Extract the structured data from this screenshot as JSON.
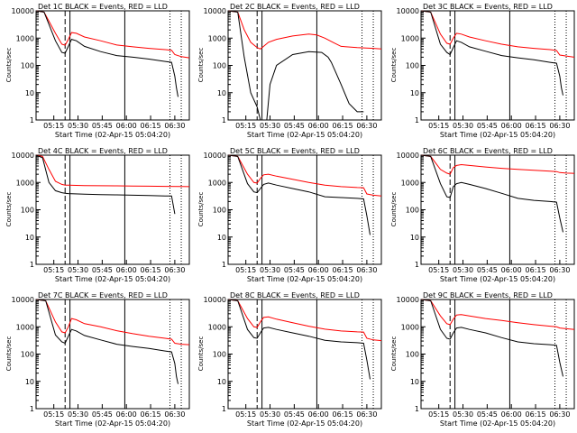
{
  "figure": {
    "panels": [
      {
        "title": "Det 1C BLACK = Events, RED = LLD"
      },
      {
        "title": "Det 2C BLACK = Events, RED = LLD"
      },
      {
        "title": "Det 3C BLACK = Events, RED = LLD"
      },
      {
        "title": "Det 4C BLACK = Events, RED = LLD"
      },
      {
        "title": "Det 5C BLACK = Events, RED = LLD"
      },
      {
        "title": "Det 6C BLACK = Events, RED = LLD"
      },
      {
        "title": "Det 7C BLACK = Events, RED = LLD"
      },
      {
        "title": "Det 8C BLACK = Events, RED = LLD"
      },
      {
        "title": "Det 9C BLACK = Events, RED = LLD"
      }
    ]
  },
  "chart_data": {
    "type": "line",
    "xlabel": "Start Time (02-Apr-15 05:04:20)",
    "ylabel": "Counts/sec",
    "x_ticks": [
      "05:15",
      "05:30",
      "05:45",
      "06:00",
      "06:15",
      "06:30"
    ],
    "y_ticks": [
      "1",
      "10",
      "100",
      "1000",
      "10000"
    ],
    "y_scale": "log",
    "ylim": [
      1,
      10000
    ],
    "x_minutes_range": [
      0,
      95
    ],
    "colors": {
      "events": "#000000",
      "lld": "#ff0000"
    },
    "panels": [
      {
        "name": "Det 1C",
        "markers": {
          "dashed": 18,
          "solid": [
            21,
            55
          ],
          "dotted": [
            83,
            90
          ]
        },
        "series": [
          {
            "name": "BLACK = Events",
            "color": "#000000",
            "x": [
              0,
              5,
              12,
              16,
              18,
              20,
              22,
              25,
              30,
              40,
              50,
              60,
              70,
              80,
              84,
              86,
              87,
              88
            ],
            "y": [
              10000,
              9000,
              800,
              300,
              280,
              500,
              900,
              800,
              500,
              320,
              230,
              200,
              170,
              140,
              130,
              40,
              15,
              7
            ]
          },
          {
            "name": "RED = LLD",
            "color": "#ff0000",
            "x": [
              0,
              5,
              12,
              16,
              18,
              20,
              22,
              25,
              30,
              40,
              50,
              60,
              70,
              80,
              84,
              86,
              90,
              95
            ],
            "y": [
              10000,
              9000,
              1500,
              600,
              550,
              900,
              1600,
              1500,
              1100,
              800,
              560,
              480,
              420,
              380,
              360,
              250,
              210,
              190
            ]
          }
        ]
      },
      {
        "name": "Det 2C",
        "markers": {
          "dashed": 18,
          "solid": [
            21,
            55
          ],
          "dotted": [
            83,
            90
          ]
        },
        "series": [
          {
            "name": "BLACK = Events",
            "color": "#000000",
            "x": [
              0,
              6,
              10,
              14,
              18,
              20,
              22,
              24,
              26,
              30,
              40,
              50,
              58,
              62,
              64,
              66,
              70,
              75,
              80,
              84
            ],
            "y": [
              10000,
              9000,
              200,
              10,
              3,
              1,
              1,
              1,
              20,
              100,
              250,
              320,
              300,
              200,
              130,
              70,
              20,
              4,
              2,
              2
            ]
          },
          {
            "name": "RED = LLD",
            "color": "#ff0000",
            "x": [
              0,
              6,
              10,
              14,
              18,
              20,
              22,
              25,
              30,
              40,
              50,
              55,
              60,
              65,
              70,
              80,
              90,
              95
            ],
            "y": [
              10000,
              9000,
              2000,
              700,
              450,
              400,
              500,
              700,
              900,
              1200,
              1400,
              1300,
              1000,
              700,
              500,
              450,
              420,
              400
            ]
          }
        ]
      },
      {
        "name": "Det 3C",
        "markers": {
          "dashed": 18,
          "solid": [
            21,
            55
          ],
          "dotted": [
            83,
            90
          ]
        },
        "series": [
          {
            "name": "BLACK = Events",
            "color": "#000000",
            "x": [
              0,
              6,
              12,
              16,
              18,
              20,
              22,
              25,
              30,
              40,
              50,
              60,
              70,
              80,
              84,
              86,
              87,
              88
            ],
            "y": [
              10000,
              9000,
              600,
              300,
              250,
              450,
              800,
              700,
              480,
              330,
              230,
              190,
              160,
              130,
              120,
              40,
              15,
              8
            ]
          },
          {
            "name": "RED = LLD",
            "color": "#ff0000",
            "x": [
              0,
              6,
              12,
              16,
              18,
              20,
              22,
              25,
              30,
              40,
              50,
              60,
              70,
              80,
              84,
              86,
              90,
              95
            ],
            "y": [
              10000,
              9000,
              1400,
              650,
              600,
              1000,
              1500,
              1400,
              1100,
              800,
              600,
              480,
              420,
              380,
              350,
              240,
              220,
              200
            ]
          }
        ]
      },
      {
        "name": "Det 4C",
        "markers": {
          "dashed": 18,
          "solid": [
            21,
            55
          ],
          "dotted": [
            83,
            90
          ]
        },
        "series": [
          {
            "name": "BLACK = Events",
            "color": "#000000",
            "x": [
              0,
              4,
              8,
              12,
              16,
              18,
              20,
              30,
              40,
              50,
              60,
              70,
              80,
              84,
              85,
              86
            ],
            "y": [
              10000,
              8000,
              1000,
              500,
              420,
              400,
              390,
              370,
              360,
              350,
              340,
              330,
              320,
              320,
              150,
              70
            ]
          },
          {
            "name": "RED = LLD",
            "color": "#ff0000",
            "x": [
              0,
              4,
              8,
              12,
              16,
              18,
              20,
              30,
              40,
              50,
              60,
              70,
              80,
              90,
              95
            ],
            "y": [
              10000,
              9000,
              3000,
              1100,
              850,
              800,
              790,
              770,
              760,
              750,
              740,
              730,
              720,
              710,
              700
            ]
          }
        ]
      },
      {
        "name": "Det 5C",
        "markers": {
          "dashed": 18,
          "solid": [
            21,
            55
          ],
          "dotted": [
            83,
            90
          ]
        },
        "series": [
          {
            "name": "BLACK = Events",
            "color": "#000000",
            "x": [
              0,
              6,
              12,
              16,
              18,
              20,
              22,
              25,
              30,
              40,
              50,
              60,
              70,
              80,
              84,
              86,
              88
            ],
            "y": [
              10000,
              9000,
              900,
              450,
              420,
              600,
              850,
              950,
              800,
              600,
              450,
              300,
              280,
              260,
              250,
              60,
              12
            ]
          },
          {
            "name": "RED = LLD",
            "color": "#ff0000",
            "x": [
              0,
              6,
              12,
              16,
              18,
              20,
              22,
              25,
              30,
              40,
              50,
              60,
              70,
              80,
              84,
              86,
              90,
              95
            ],
            "y": [
              10000,
              9000,
              2000,
              1000,
              950,
              1400,
              1900,
              2000,
              1700,
              1300,
              1000,
              800,
              700,
              650,
              640,
              380,
              340,
              320
            ]
          }
        ]
      },
      {
        "name": "Det 6C",
        "markers": {
          "dashed": 18,
          "solid": [
            21,
            55
          ],
          "dotted": [
            83,
            90
          ]
        },
        "series": [
          {
            "name": "BLACK = Events",
            "color": "#000000",
            "x": [
              0,
              6,
              12,
              16,
              18,
              20,
              22,
              25,
              30,
              40,
              50,
              60,
              70,
              80,
              84,
              86,
              88
            ],
            "y": [
              10000,
              9000,
              900,
              300,
              280,
              700,
              900,
              1000,
              850,
              600,
              400,
              260,
              220,
              200,
              190,
              50,
              15
            ]
          },
          {
            "name": "RED = LLD",
            "color": "#ff0000",
            "x": [
              0,
              6,
              12,
              16,
              18,
              20,
              22,
              25,
              30,
              40,
              50,
              60,
              70,
              80,
              84,
              86,
              90,
              95
            ],
            "y": [
              10000,
              9000,
              3000,
              2200,
              2000,
              3500,
              4200,
              4500,
              4200,
              3700,
              3300,
              3000,
              2800,
              2600,
              2500,
              2300,
              2200,
              2150
            ]
          }
        ]
      },
      {
        "name": "Det 7C",
        "markers": {
          "dashed": 18,
          "solid": [
            21,
            55
          ],
          "dotted": [
            83,
            90
          ]
        },
        "series": [
          {
            "name": "BLACK = Events",
            "color": "#000000",
            "x": [
              0,
              6,
              12,
              16,
              18,
              20,
              22,
              25,
              30,
              40,
              50,
              60,
              70,
              80,
              84,
              86,
              87,
              88
            ],
            "y": [
              10000,
              9000,
              500,
              280,
              250,
              450,
              800,
              700,
              480,
              330,
              230,
              190,
              160,
              130,
              120,
              45,
              15,
              8
            ]
          },
          {
            "name": "RED = LLD",
            "color": "#ff0000",
            "x": [
              0,
              6,
              12,
              16,
              18,
              20,
              22,
              25,
              30,
              40,
              50,
              60,
              70,
              80,
              84,
              86,
              90,
              95
            ],
            "y": [
              10000,
              9000,
              1500,
              650,
              600,
              1000,
              2000,
              1800,
              1300,
              1000,
              720,
              560,
              450,
              380,
              350,
              250,
              230,
              220
            ]
          }
        ]
      },
      {
        "name": "Det 8C",
        "markers": {
          "dashed": 18,
          "solid": [
            21,
            55
          ],
          "dotted": [
            83,
            90
          ]
        },
        "series": [
          {
            "name": "BLACK = Events",
            "color": "#000000",
            "x": [
              0,
              6,
              12,
              16,
              18,
              20,
              22,
              25,
              30,
              40,
              50,
              60,
              70,
              80,
              84,
              86,
              88
            ],
            "y": [
              10000,
              9000,
              800,
              400,
              380,
              600,
              900,
              950,
              800,
              600,
              450,
              320,
              280,
              260,
              250,
              60,
              12
            ]
          },
          {
            "name": "RED = LLD",
            "color": "#ff0000",
            "x": [
              0,
              6,
              12,
              16,
              18,
              20,
              22,
              25,
              30,
              40,
              50,
              60,
              70,
              80,
              84,
              86,
              90,
              95
            ],
            "y": [
              10000,
              9000,
              2000,
              1000,
              950,
              1500,
              2200,
              2300,
              1900,
              1400,
              1050,
              820,
              700,
              650,
              640,
              380,
              330,
              310
            ]
          }
        ]
      },
      {
        "name": "Det 9C",
        "markers": {
          "dashed": 18,
          "solid": [
            21,
            55
          ],
          "dotted": [
            83,
            90
          ]
        },
        "series": [
          {
            "name": "BLACK = Events",
            "color": "#000000",
            "x": [
              0,
              6,
              12,
              16,
              18,
              20,
              22,
              25,
              30,
              40,
              50,
              60,
              70,
              80,
              84,
              86,
              88
            ],
            "y": [
              10000,
              9000,
              800,
              380,
              350,
              600,
              900,
              950,
              800,
              600,
              400,
              280,
              240,
              220,
              210,
              50,
              15
            ]
          },
          {
            "name": "RED = LLD",
            "color": "#ff0000",
            "x": [
              0,
              6,
              12,
              16,
              18,
              20,
              22,
              25,
              30,
              40,
              50,
              60,
              70,
              80,
              84,
              86,
              90,
              95
            ],
            "y": [
              10000,
              9000,
              2500,
              1300,
              1200,
              1900,
              2700,
              2800,
              2500,
              2000,
              1700,
              1400,
              1200,
              1050,
              1000,
              900,
              850,
              800
            ]
          }
        ]
      }
    ]
  }
}
